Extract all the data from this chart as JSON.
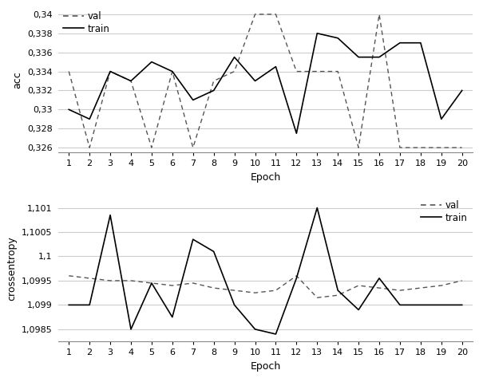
{
  "epochs": [
    1,
    2,
    3,
    4,
    5,
    6,
    7,
    8,
    9,
    10,
    11,
    12,
    13,
    14,
    15,
    16,
    17,
    18,
    19,
    20
  ],
  "acc_val": [
    0.334,
    0.326,
    0.334,
    0.333,
    0.326,
    0.334,
    0.326,
    0.333,
    0.334,
    0.34,
    0.34,
    0.334,
    0.334,
    0.334,
    0.326,
    0.34,
    0.326,
    0.326,
    0.326,
    0.326
  ],
  "acc_train": [
    0.33,
    0.329,
    0.334,
    0.333,
    0.335,
    0.334,
    0.331,
    0.332,
    0.3355,
    0.333,
    0.3345,
    0.3275,
    0.338,
    0.3375,
    0.3355,
    0.3355,
    0.337,
    0.337,
    0.329,
    0.332
  ],
  "ce_val": [
    1.0996,
    1.09955,
    1.0995,
    1.0995,
    1.09945,
    1.0994,
    1.09945,
    1.09935,
    1.0993,
    1.09925,
    1.0993,
    1.0996,
    1.09915,
    1.0992,
    1.0994,
    1.09935,
    1.0993,
    1.09935,
    1.0994,
    1.0995
  ],
  "ce_train": [
    1.099,
    1.099,
    1.10085,
    1.0985,
    1.09945,
    1.09875,
    1.10035,
    1.1001,
    1.099,
    1.0985,
    1.0984,
    1.09955,
    1.101,
    1.0993,
    1.0989,
    1.09955,
    1.099,
    1.099,
    1.099,
    1.099
  ],
  "acc_yticks": [
    0.326,
    0.328,
    0.33,
    0.332,
    0.334,
    0.336,
    0.338,
    0.34
  ],
  "acc_yticklabels": [
    "0,326",
    "0,328",
    "0,33",
    "0,332",
    "0,334",
    "0,336",
    "0,338",
    "0,34"
  ],
  "ce_yticks": [
    1.0985,
    1.099,
    1.0995,
    1.1,
    1.1005,
    1.101
  ],
  "ce_yticklabels": [
    "1,0985",
    "1,099",
    "1,0995",
    "1,1",
    "1,1005",
    "1,101"
  ],
  "val_color": "#555555",
  "train_color": "#000000",
  "grid_color": "#cccccc",
  "bg_color": "#ffffff",
  "fig_width": 6.0,
  "fig_height": 4.74,
  "acc_ylim_lo": 0.3255,
  "acc_ylim_hi": 0.3408,
  "ce_ylim_lo": 1.09825,
  "ce_ylim_hi": 1.10125
}
